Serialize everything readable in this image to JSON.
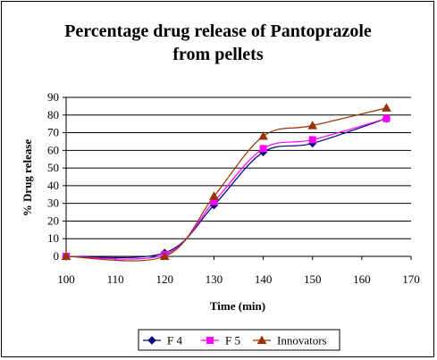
{
  "chart_data": {
    "type": "line",
    "title": "Percentage drug release of Pantoprazole from pellets",
    "title_lines": [
      "Percentage drug release of Pantoprazole",
      "from pellets"
    ],
    "xlabel": "Time (min)",
    "ylabel": "% Drug release",
    "xlim": [
      100,
      170
    ],
    "ylim": [
      0,
      90
    ],
    "x_ticks": [
      100,
      110,
      120,
      130,
      140,
      150,
      160,
      170
    ],
    "y_ticks": [
      0,
      10,
      20,
      30,
      40,
      50,
      60,
      70,
      80,
      90
    ],
    "grid": "horizontal",
    "smoothed": true,
    "legend_position": "bottom",
    "x": [
      100,
      120,
      130,
      140,
      150,
      165
    ],
    "series": [
      {
        "name": "F 4",
        "values": [
          0,
          2,
          29,
          59,
          64,
          78
        ],
        "color": "#000080",
        "marker": "diamond"
      },
      {
        "name": "F 5",
        "values": [
          0,
          1,
          31,
          61,
          66,
          78
        ],
        "color": "#ff00ff",
        "marker": "square"
      },
      {
        "name": "Innovators",
        "values": [
          0,
          0,
          34,
          68,
          74,
          84
        ],
        "color": "#993300",
        "marker": "triangle"
      }
    ]
  }
}
